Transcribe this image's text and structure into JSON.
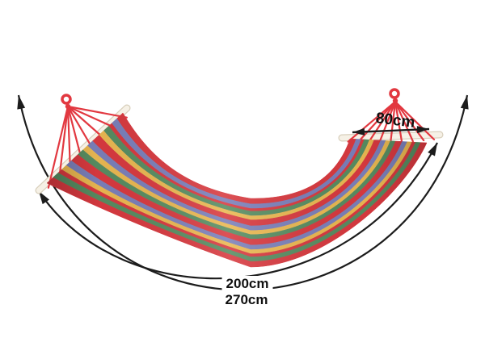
{
  "image": {
    "description": "Product photo of a multicolour striped fabric hammock hanging in a U shape between two wooden spreader bars, gathered by red ropes at each end, annotated with measurement arrows",
    "background": "#ffffff"
  },
  "hammock": {
    "rope_color": "#e23840",
    "bar_color": "#f6f1e6",
    "bar_edge_color": "#d8cfbc",
    "stripe_colors": {
      "red": "#d7393f",
      "purple": "#7a7fb9",
      "yellow": "#e9b751",
      "green": "#578c61"
    },
    "stripe_sequence": [
      {
        "color": "red",
        "w": 1.2
      },
      {
        "color": "purple",
        "w": 1
      },
      {
        "color": "red",
        "w": 0.6
      },
      {
        "color": "green",
        "w": 1
      },
      {
        "color": "yellow",
        "w": 0.9
      },
      {
        "color": "red",
        "w": 1.3
      },
      {
        "color": "purple",
        "w": 1
      },
      {
        "color": "yellow",
        "w": 0.9
      },
      {
        "color": "green",
        "w": 1
      },
      {
        "color": "red",
        "w": 1.3
      },
      {
        "color": "purple",
        "w": 1
      },
      {
        "color": "yellow",
        "w": 0.9
      },
      {
        "color": "red",
        "w": 0.7
      },
      {
        "color": "green",
        "w": 1
      },
      {
        "color": "red",
        "w": 1.2
      }
    ]
  },
  "annotations": {
    "line_color": "#1c1c1c",
    "text_color": "#111111",
    "bar_width": {
      "label": "80cm"
    },
    "inner_length": {
      "label": "200cm"
    },
    "outer_length": {
      "label": "270cm"
    }
  }
}
